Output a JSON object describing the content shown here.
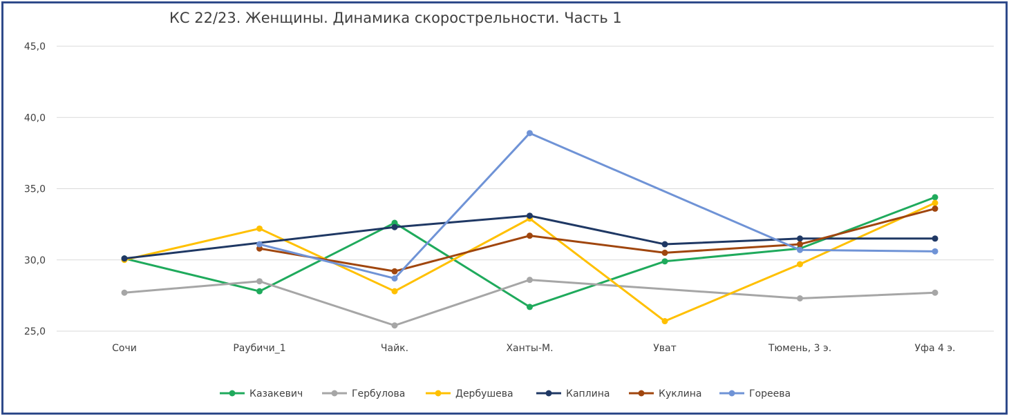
{
  "chart_data": {
    "type": "line",
    "title": "КС 22/23. Женщины. Динамика скорострельности. Часть 1",
    "xlabel": "",
    "ylabel": "",
    "categories": [
      "Сочи",
      "Раубичи_1",
      "Чайк.",
      "Ханты-М.",
      "Уват",
      "Тюмень, 3 э.",
      "Уфа 4 э."
    ],
    "ylim": [
      25,
      45
    ],
    "yticks": [
      "25,0",
      "30,0",
      "35,0",
      "40,0",
      "45,0"
    ],
    "ytick_values": [
      25,
      30,
      35,
      40,
      45
    ],
    "grid": true,
    "legend_position": "bottom",
    "series": [
      {
        "name": "Казакевич",
        "color": "#1faa5c",
        "values": [
          30.1,
          27.8,
          32.6,
          26.7,
          29.9,
          30.8,
          34.4
        ]
      },
      {
        "name": "Гербулова",
        "color": "#a6a6a6",
        "values": [
          27.7,
          28.5,
          25.4,
          28.6,
          null,
          27.3,
          27.7
        ]
      },
      {
        "name": "Дербушева",
        "color": "#ffc000",
        "values": [
          30.0,
          32.2,
          27.8,
          32.9,
          25.7,
          29.7,
          34.0
        ]
      },
      {
        "name": "Каплина",
        "color": "#1f3864",
        "values": [
          30.1,
          null,
          32.3,
          33.1,
          31.1,
          31.5,
          31.5
        ]
      },
      {
        "name": "Куклина",
        "color": "#a0460e",
        "values": [
          null,
          30.8,
          29.2,
          31.7,
          30.5,
          31.1,
          33.6
        ]
      },
      {
        "name": "Гореева",
        "color": "#6f93d6",
        "values": [
          null,
          31.1,
          28.7,
          38.9,
          null,
          30.7,
          30.6
        ]
      }
    ]
  }
}
